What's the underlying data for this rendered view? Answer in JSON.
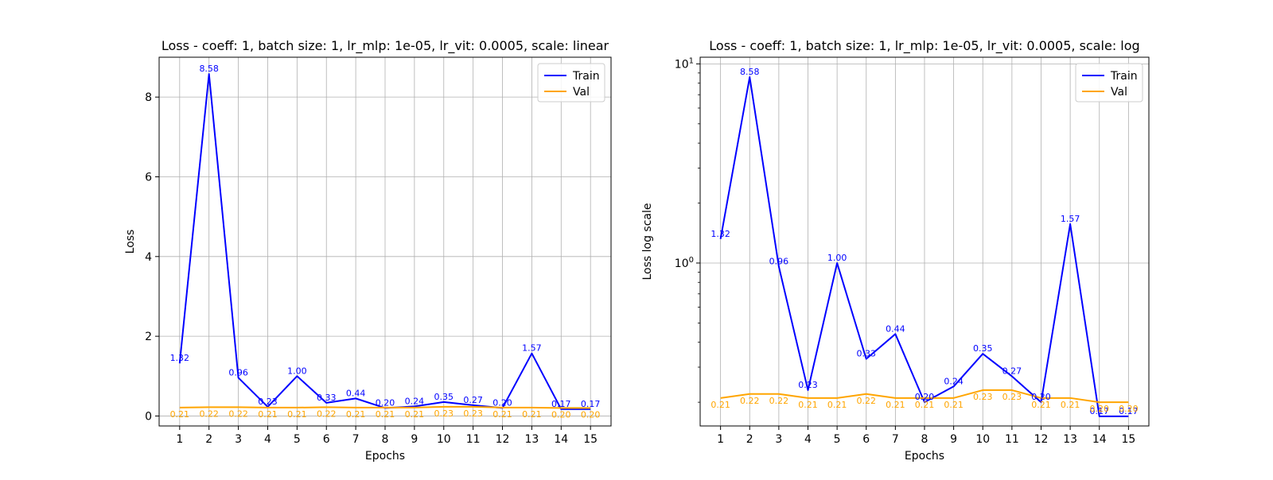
{
  "colors": {
    "train": "#0000ff",
    "val": "#ffa500",
    "grid": "#b0b0b0",
    "axis": "#000000"
  },
  "chart_data": [
    {
      "type": "line",
      "title": "Loss - coeff: 1, batch size: 1, lr_mlp: 1e-05, lr_vit: 0.0005, scale: linear",
      "xlabel": "Epochs",
      "ylabel": "Loss",
      "yscale": "linear",
      "xlim": [
        0.3,
        15.7
      ],
      "ylim": [
        -0.25,
        9.0
      ],
      "xticks": [
        1,
        2,
        3,
        4,
        5,
        6,
        7,
        8,
        9,
        10,
        11,
        12,
        13,
        14,
        15
      ],
      "yticks": [
        0,
        2,
        4,
        6,
        8
      ],
      "ytick_labels": [
        "0",
        "2",
        "4",
        "6",
        "8"
      ],
      "grid": true,
      "legend": "top-right",
      "x": [
        1,
        2,
        3,
        4,
        5,
        6,
        7,
        8,
        9,
        10,
        11,
        12,
        13,
        14,
        15
      ],
      "series": [
        {
          "name": "Train",
          "color": "#0000ff",
          "values": [
            1.32,
            8.58,
            0.96,
            0.23,
            1.0,
            0.33,
            0.44,
            0.2,
            0.24,
            0.35,
            0.27,
            0.2,
            1.57,
            0.17,
            0.17
          ],
          "labels": [
            "1.32",
            "8.58",
            "0.96",
            "0.23",
            "1.00",
            "0.33",
            "0.44",
            "0.20",
            "0.24",
            "0.35",
            "0.27",
            "0.20",
            "1.57",
            "0.17",
            "0.17"
          ]
        },
        {
          "name": "Val",
          "color": "#ffa500",
          "values": [
            0.21,
            0.22,
            0.22,
            0.21,
            0.21,
            0.22,
            0.21,
            0.21,
            0.21,
            0.23,
            0.23,
            0.21,
            0.21,
            0.2,
            0.2
          ],
          "labels": [
            "0.21",
            "0.22",
            "0.22",
            "0.21",
            "0.21",
            "0.22",
            "0.21",
            "0.21",
            "0.21",
            "0.23",
            "0.23",
            "0.21",
            "0.21",
            "0.20",
            "0.20"
          ]
        }
      ]
    },
    {
      "type": "line",
      "title": "Loss - coeff: 1, batch size: 1, lr_mlp: 1e-05, lr_vit: 0.0005, scale: log",
      "xlabel": "Epochs",
      "ylabel": "Loss log scale",
      "yscale": "log",
      "xlim": [
        0.3,
        15.7
      ],
      "ylim": [
        0.152,
        10.8
      ],
      "xticks": [
        1,
        2,
        3,
        4,
        5,
        6,
        7,
        8,
        9,
        10,
        11,
        12,
        13,
        14,
        15
      ],
      "yticks": [
        1,
        10
      ],
      "ytick_labels": [
        "10^0",
        "10^1"
      ],
      "grid": true,
      "legend": "top-right",
      "x": [
        1,
        2,
        3,
        4,
        5,
        6,
        7,
        8,
        9,
        10,
        11,
        12,
        13,
        14,
        15
      ],
      "series": [
        {
          "name": "Train",
          "color": "#0000ff",
          "values": [
            1.32,
            8.58,
            0.96,
            0.23,
            1.0,
            0.33,
            0.44,
            0.2,
            0.24,
            0.35,
            0.27,
            0.2,
            1.57,
            0.17,
            0.17
          ],
          "labels": [
            "1.32",
            "8.58",
            "0.96",
            "0.23",
            "1.00",
            "0.33",
            "0.44",
            "0.20",
            "0.24",
            "0.35",
            "0.27",
            "0.20",
            "1.57",
            "0.17",
            "0.17"
          ]
        },
        {
          "name": "Val",
          "color": "#ffa500",
          "values": [
            0.21,
            0.22,
            0.22,
            0.21,
            0.21,
            0.22,
            0.21,
            0.21,
            0.21,
            0.23,
            0.23,
            0.21,
            0.21,
            0.2,
            0.2
          ],
          "labels": [
            "0.21",
            "0.22",
            "0.22",
            "0.21",
            "0.21",
            "0.22",
            "0.21",
            "0.21",
            "0.21",
            "0.23",
            "0.23",
            "0.21",
            "0.21",
            "0.20",
            "0.20"
          ]
        }
      ]
    }
  ]
}
